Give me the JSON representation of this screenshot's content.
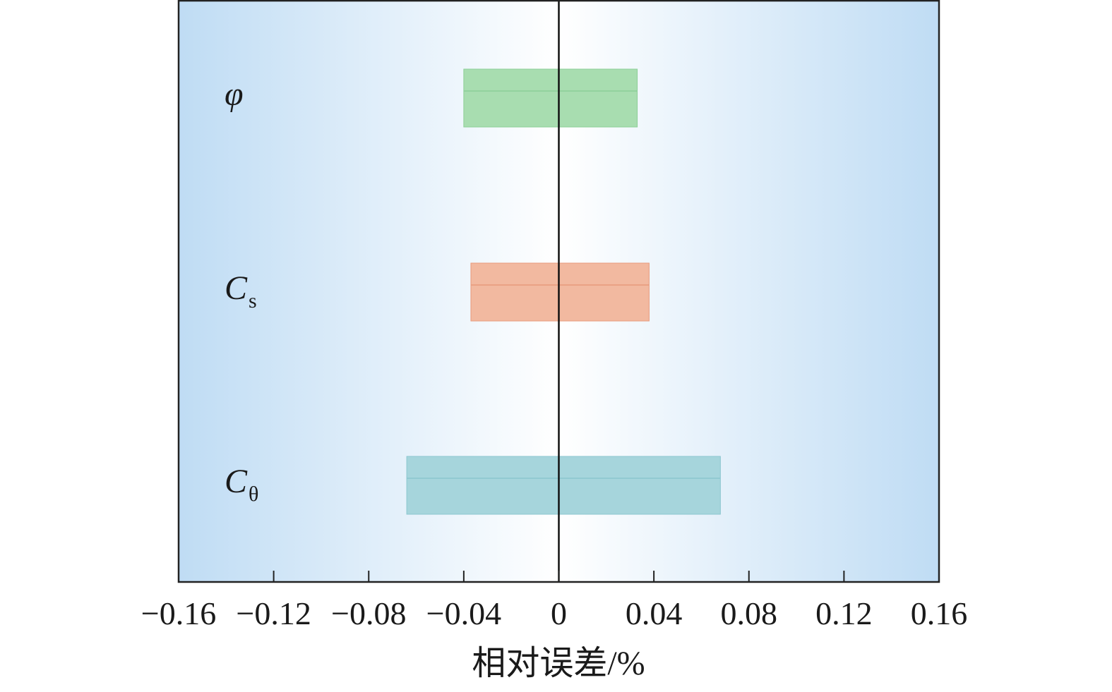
{
  "chart_data": {
    "type": "bar",
    "orientation": "horizontal",
    "xlabel": "相对误差/%",
    "ylabel": "",
    "xlim": [
      -0.16,
      0.16
    ],
    "xticks": [
      -0.16,
      -0.12,
      -0.08,
      -0.04,
      0,
      0.04,
      0.08,
      0.12,
      0.16
    ],
    "xtick_labels": [
      "−0.16",
      "−0.12",
      "−0.08",
      "−0.04",
      "0",
      "0.04",
      "0.08",
      "0.12",
      "0.16"
    ],
    "grid": false,
    "categories": [
      {
        "main": "φ",
        "sub": ""
      },
      {
        "main": "C",
        "sub": "s"
      },
      {
        "main": "C",
        "sub": "θ"
      }
    ],
    "ranges": [
      {
        "min": -0.04,
        "max": 0.033
      },
      {
        "min": -0.037,
        "max": 0.038
      },
      {
        "min": -0.064,
        "max": 0.068
      }
    ],
    "colors": {
      "bars": [
        "#a8ddb0",
        "#f2b9a0",
        "#a6d5dc"
      ],
      "bar_edges": [
        "#8ccf97",
        "#e89a7c",
        "#8cc6cf"
      ],
      "background_edge": "#bfdcf4",
      "background_center": "#ffffff"
    }
  }
}
